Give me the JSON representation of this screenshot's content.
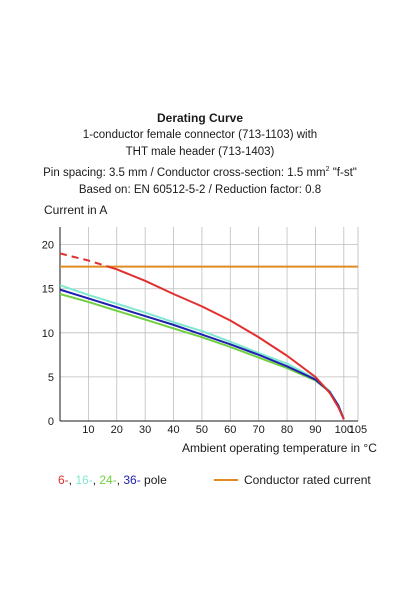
{
  "header": {
    "title": "Derating Curve",
    "line1": "1-conductor female connector (713-1103) with",
    "line2": "THT male header (713-1403)",
    "line3_pre": "Pin spacing: 3.5 mm / Conductor cross-section: 1.5 mm",
    "line3_sup": "2",
    "line3_post": " \"f-st\"",
    "line4": "Based on: EN 60512-5-2 / Reduction factor: 0.8"
  },
  "chart_data": {
    "type": "line",
    "title": "Derating Curve",
    "ylabel": "Current in A",
    "xlabel": "Ambient operating temperature in °C",
    "xlim": [
      0,
      105
    ],
    "ylim": [
      0,
      22
    ],
    "xticks": [
      "10",
      "20",
      "30",
      "40",
      "50",
      "60",
      "70",
      "80",
      "90",
      "100",
      "105"
    ],
    "xtick_values": [
      10,
      20,
      30,
      40,
      50,
      60,
      70,
      80,
      90,
      100,
      105
    ],
    "yticks": [
      "0",
      "5",
      "10",
      "15",
      "20"
    ],
    "ytick_values": [
      0,
      5,
      10,
      15,
      20
    ],
    "grid": true,
    "series": [
      {
        "name": "6-",
        "color": "#e03030",
        "dashed_until_x": 17,
        "points": [
          [
            0,
            19.0
          ],
          [
            5,
            18.6
          ],
          [
            10,
            18.2
          ],
          [
            15,
            17.7
          ],
          [
            20,
            17.2
          ],
          [
            30,
            15.9
          ],
          [
            40,
            14.4
          ],
          [
            50,
            13.0
          ],
          [
            60,
            11.4
          ],
          [
            70,
            9.5
          ],
          [
            80,
            7.4
          ],
          [
            90,
            5.0
          ],
          [
            95,
            3.2
          ],
          [
            98,
            1.6
          ],
          [
            100,
            0.2
          ]
        ]
      },
      {
        "name": "16-",
        "color": "#80e8d0",
        "points": [
          [
            0,
            15.4
          ],
          [
            10,
            14.3
          ],
          [
            20,
            13.3
          ],
          [
            30,
            12.3
          ],
          [
            40,
            11.2
          ],
          [
            50,
            10.2
          ],
          [
            60,
            9.0
          ],
          [
            70,
            7.7
          ],
          [
            80,
            6.5
          ],
          [
            90,
            4.8
          ],
          [
            95,
            3.4
          ],
          [
            98,
            1.8
          ],
          [
            100,
            0.2
          ]
        ]
      },
      {
        "name": "24-",
        "color": "#70d040",
        "points": [
          [
            0,
            14.4
          ],
          [
            10,
            13.5
          ],
          [
            20,
            12.5
          ],
          [
            30,
            11.5
          ],
          [
            40,
            10.5
          ],
          [
            50,
            9.5
          ],
          [
            60,
            8.4
          ],
          [
            70,
            7.2
          ],
          [
            80,
            6.0
          ],
          [
            90,
            4.6
          ],
          [
            95,
            3.3
          ],
          [
            98,
            1.8
          ],
          [
            100,
            0.2
          ]
        ]
      },
      {
        "name": "36-",
        "color": "#2020b0",
        "points": [
          [
            0,
            14.9
          ],
          [
            10,
            13.9
          ],
          [
            20,
            12.9
          ],
          [
            30,
            11.9
          ],
          [
            40,
            10.9
          ],
          [
            50,
            9.8
          ],
          [
            60,
            8.7
          ],
          [
            70,
            7.5
          ],
          [
            80,
            6.2
          ],
          [
            90,
            4.7
          ],
          [
            95,
            3.3
          ],
          [
            98,
            1.8
          ],
          [
            100,
            0.2
          ]
        ]
      },
      {
        "name": "Conductor rated current",
        "color": "#e08a20",
        "points": [
          [
            0,
            17.5
          ],
          [
            105,
            17.5
          ]
        ]
      }
    ],
    "legend": {
      "pole_suffix": " pole",
      "pole_sep": ", ",
      "rated_label": "Conductor rated current"
    }
  }
}
